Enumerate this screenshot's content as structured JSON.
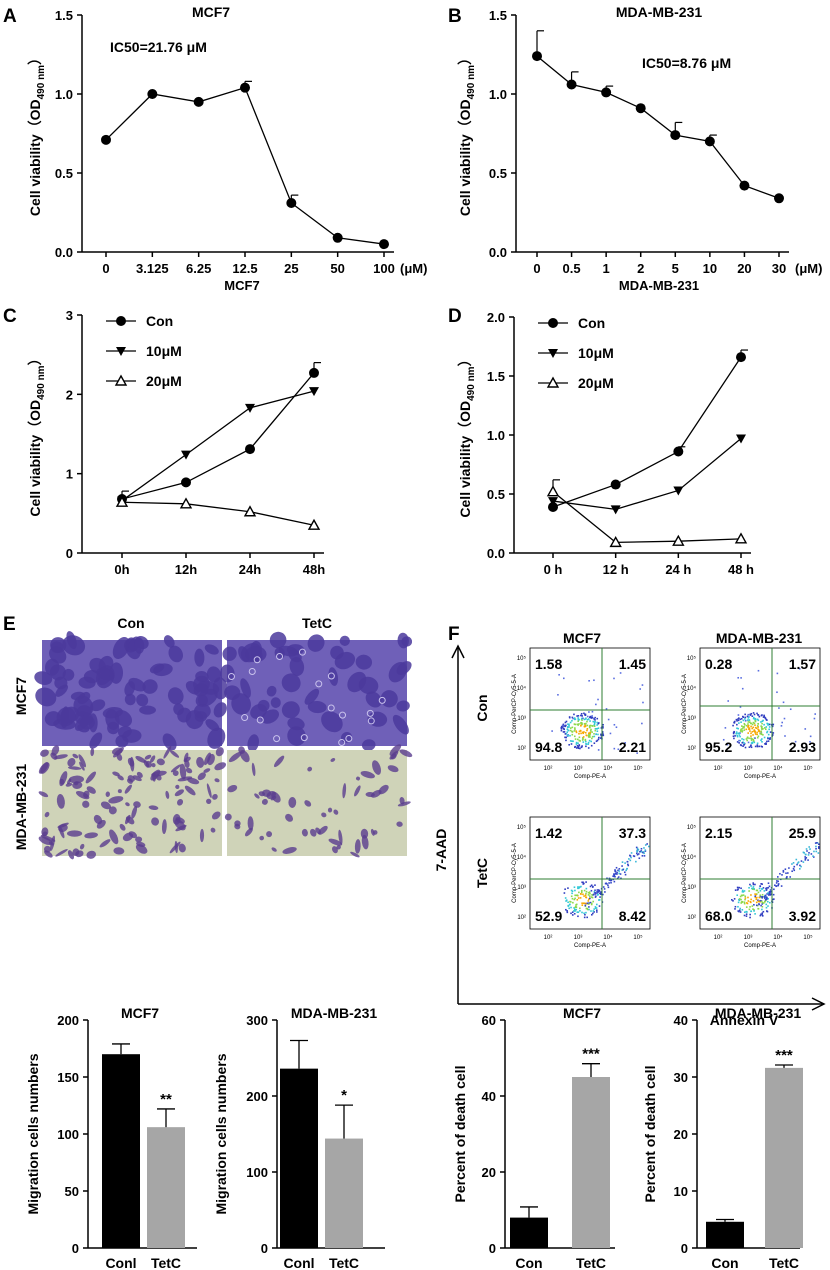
{
  "figure": {
    "panel_labels": [
      "A",
      "B",
      "C",
      "D",
      "E",
      "F"
    ]
  },
  "colors": {
    "ink": "#000000",
    "bar_con": "#000000",
    "bar_tetc": "#a6a6a6",
    "gate": "#2e7d32",
    "micro_mcf7": "#4b3a9c",
    "micro_mda_bg": "#cfd3b8",
    "micro_mda_cell": "#5a3d8f"
  },
  "chart_data": [
    {
      "id": "A",
      "type": "line",
      "title": "MCF7",
      "annotation": "IC50=21.76 μM",
      "xlabel": "MCF7",
      "ylabel": "Cell viability（OD490 nm）",
      "categories": [
        "0",
        "3.125",
        "6.25",
        "12.5",
        "25",
        "50",
        "100"
      ],
      "unit_label": "(μM)",
      "ylim": [
        0,
        1.5
      ],
      "yticks": [
        "0.0",
        "0.5",
        "1.0",
        "1.5"
      ],
      "series": [
        {
          "name": "MCF7",
          "marker": "circle",
          "values": [
            0.71,
            1.0,
            0.95,
            1.04,
            0.31,
            0.09,
            0.05
          ],
          "err": [
            0,
            0,
            0,
            0.04,
            0.05,
            0,
            0
          ]
        }
      ]
    },
    {
      "id": "B",
      "type": "line",
      "title": "MDA-MB-231",
      "annotation": "IC50=8.76 μM",
      "xlabel": "MDA-MB-231",
      "ylabel": "Cell viability（OD490 nm）",
      "categories": [
        "0",
        "0.5",
        "1",
        "2",
        "5",
        "10",
        "20",
        "30"
      ],
      "unit_label": "(μM)",
      "ylim": [
        0,
        1.5
      ],
      "yticks": [
        "0.0",
        "0.5",
        "1.0",
        "1.5"
      ],
      "series": [
        {
          "name": "MDA-MB-231",
          "marker": "circle",
          "values": [
            1.24,
            1.06,
            1.01,
            0.91,
            0.74,
            0.7,
            0.42,
            0.34
          ],
          "err": [
            0.16,
            0.08,
            0.04,
            0,
            0.08,
            0.04,
            0,
            0
          ]
        }
      ]
    },
    {
      "id": "C",
      "type": "line",
      "title": "",
      "xlabel": "",
      "ylabel": "Cell viability（OD490 nm）",
      "categories": [
        "0h",
        "12h",
        "24h",
        "48h"
      ],
      "ylim": [
        0,
        3
      ],
      "yticks": [
        "0",
        "1",
        "2",
        "3"
      ],
      "legend": "top-left",
      "series": [
        {
          "name": "Con",
          "marker": "circle",
          "values": [
            0.68,
            0.89,
            1.31,
            2.27
          ],
          "err": [
            0.1,
            0,
            0,
            0.13
          ]
        },
        {
          "name": "10μM",
          "marker": "triangle-down",
          "values": [
            0.66,
            1.24,
            1.83,
            2.04
          ],
          "err": [
            0,
            0,
            0,
            0
          ]
        },
        {
          "name": "20μM",
          "marker": "triangle-up-open",
          "values": [
            0.64,
            0.62,
            0.52,
            0.35
          ],
          "err": [
            0,
            0,
            0,
            0
          ]
        }
      ]
    },
    {
      "id": "D",
      "type": "line",
      "title": "",
      "xlabel": "",
      "ylabel": "Cell viability（OD490 nm）",
      "categories": [
        "0 h",
        "12 h",
        "24 h",
        "48 h"
      ],
      "ylim": [
        0,
        2
      ],
      "yticks": [
        "0.0",
        "0.5",
        "1.0",
        "1.5",
        "2.0"
      ],
      "legend": "top-left",
      "series": [
        {
          "name": "Con",
          "marker": "circle",
          "values": [
            0.39,
            0.58,
            0.86,
            1.66
          ],
          "err": [
            0,
            0,
            0.04,
            0.06
          ]
        },
        {
          "name": "10μM",
          "marker": "triangle-down",
          "values": [
            0.44,
            0.37,
            0.53,
            0.97
          ],
          "err": [
            0,
            0,
            0,
            0
          ]
        },
        {
          "name": "20μM",
          "marker": "triangle-up-open",
          "values": [
            0.52,
            0.09,
            0.1,
            0.12
          ],
          "err": [
            0.1,
            0,
            0,
            0
          ]
        }
      ]
    },
    {
      "id": "E-MCF7",
      "type": "bar",
      "title": "MCF7",
      "ylabel": "Migration cells numbers",
      "categories": [
        "Conl",
        "TetC"
      ],
      "values": [
        170,
        106
      ],
      "err": [
        9,
        16
      ],
      "sig": [
        "",
        "**"
      ],
      "ylim": [
        0,
        200
      ],
      "yticks": [
        "0",
        "50",
        "100",
        "150",
        "200"
      ]
    },
    {
      "id": "E-MDA",
      "type": "bar",
      "title": "MDA-MB-231",
      "ylabel": "Migration cells numbers",
      "categories": [
        "Conl",
        "TetC"
      ],
      "values": [
        236,
        144
      ],
      "err": [
        37,
        44
      ],
      "sig": [
        "",
        "*"
      ],
      "ylim": [
        0,
        300
      ],
      "yticks": [
        "0",
        "100",
        "200",
        "300"
      ]
    },
    {
      "id": "F-MCF7",
      "type": "bar",
      "title": "MCF7",
      "ylabel": "Percent of death cell",
      "categories": [
        "Con",
        "TetC"
      ],
      "values": [
        8,
        45
      ],
      "err": [
        2.8,
        3.5
      ],
      "sig": [
        "",
        "***"
      ],
      "ylim": [
        0,
        60
      ],
      "yticks": [
        "0",
        "20",
        "40",
        "60"
      ]
    },
    {
      "id": "F-MDA",
      "type": "bar",
      "title": "MDA-MB-231",
      "ylabel": "Percent of death cell",
      "categories": [
        "Con",
        "TetC"
      ],
      "values": [
        4.6,
        31.6
      ],
      "err": [
        0.4,
        0.5
      ],
      "sig": [
        "",
        "***"
      ],
      "ylim": [
        0,
        40
      ],
      "yticks": [
        "0",
        "10",
        "20",
        "30",
        "40"
      ]
    }
  ],
  "micrographs": {
    "col_labels": [
      "Con",
      "TetC"
    ],
    "row_labels": [
      "MCF7",
      "MDA-MB-231"
    ]
  },
  "flow": {
    "col_labels": [
      "MCF7",
      "MDA-MB-231"
    ],
    "row_labels": [
      "Con",
      "TetC"
    ],
    "y_axis": "7-AAD",
    "x_axis": "Annexin V",
    "plot_xlabel": "Comp-PE-A",
    "plot_ylabel": "Comp-PerCP-Cy5-5-A",
    "tick_labels": [
      "10²",
      "10³",
      "10⁴",
      "10⁵"
    ],
    "quadrants": [
      [
        "1.58",
        "1.45",
        "94.8",
        "2.21"
      ],
      [
        "0.28",
        "1.57",
        "95.2",
        "2.93"
      ],
      [
        "1.42",
        "37.3",
        "52.9",
        "8.42"
      ],
      [
        "2.15",
        "25.9",
        "68.0",
        "3.92"
      ]
    ]
  }
}
